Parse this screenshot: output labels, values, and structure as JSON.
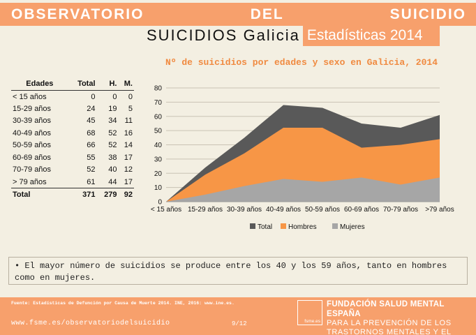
{
  "header": {
    "banner": "OBSERVATORIO DEL SUICIDIO",
    "subtitle": "SUICIDIOS Galicia",
    "tag": "Estadísticas 2014"
  },
  "table": {
    "headers": [
      "Edades",
      "Total",
      "H.",
      "M."
    ],
    "rows": [
      [
        "< 15 años",
        "0",
        "0",
        "0"
      ],
      [
        "15-29 años",
        "24",
        "19",
        "5"
      ],
      [
        "30-39 años",
        "45",
        "34",
        "11"
      ],
      [
        "40-49 años",
        "68",
        "52",
        "16"
      ],
      [
        "50-59 años",
        "66",
        "52",
        "14"
      ],
      [
        "60-69 años",
        "55",
        "38",
        "17"
      ],
      [
        "70-79 años",
        "52",
        "40",
        "12"
      ],
      [
        "> 79 años",
        "61",
        "44",
        "17"
      ]
    ],
    "total": [
      "Total",
      "371",
      "279",
      "92"
    ]
  },
  "chart_data": {
    "type": "area",
    "title": "Nº de suicidios por edades y sexo en Galicia, 2014",
    "categories": [
      "< 15 años",
      "15-29 años",
      "30-39 años",
      "40-49 años",
      "50-59 años",
      "60-69 años",
      "70-79 años",
      ">79 años"
    ],
    "series": [
      {
        "name": "Total",
        "values": [
          0,
          24,
          45,
          68,
          66,
          55,
          52,
          61
        ],
        "color": "#595959"
      },
      {
        "name": "Hombres",
        "values": [
          0,
          19,
          34,
          52,
          52,
          38,
          40,
          44
        ],
        "color": "#f79646"
      },
      {
        "name": "Mujeres",
        "values": [
          0,
          5,
          11,
          16,
          14,
          17,
          12,
          17
        ],
        "color": "#a6a6a6"
      }
    ],
    "ylim": [
      0,
      80
    ],
    "yticks": [
      0,
      10,
      20,
      30,
      40,
      50,
      60,
      70,
      80
    ],
    "grid": true,
    "legend": "bottom"
  },
  "note": "• El mayor número de suicidios se produce entre los 40 y los 59 años, tanto en hombres como en mujeres.",
  "footer": {
    "source": "Fuente: Estadísticas de Defunción por Causa de Muerte 2014. INE, 2016: www.ine.es.",
    "url": "www.fsme.es/observatoriodelsuicidio",
    "page": "9/12",
    "logo_text": "fsme.es",
    "org_line1": "FUNDACIÓN SALUD MENTAL ESPAÑA",
    "org_line2": "PARA LA PREVENCIÓN DE LOS",
    "org_line3": "TRASTORNOS MENTALES Y EL SUICIDIO"
  }
}
